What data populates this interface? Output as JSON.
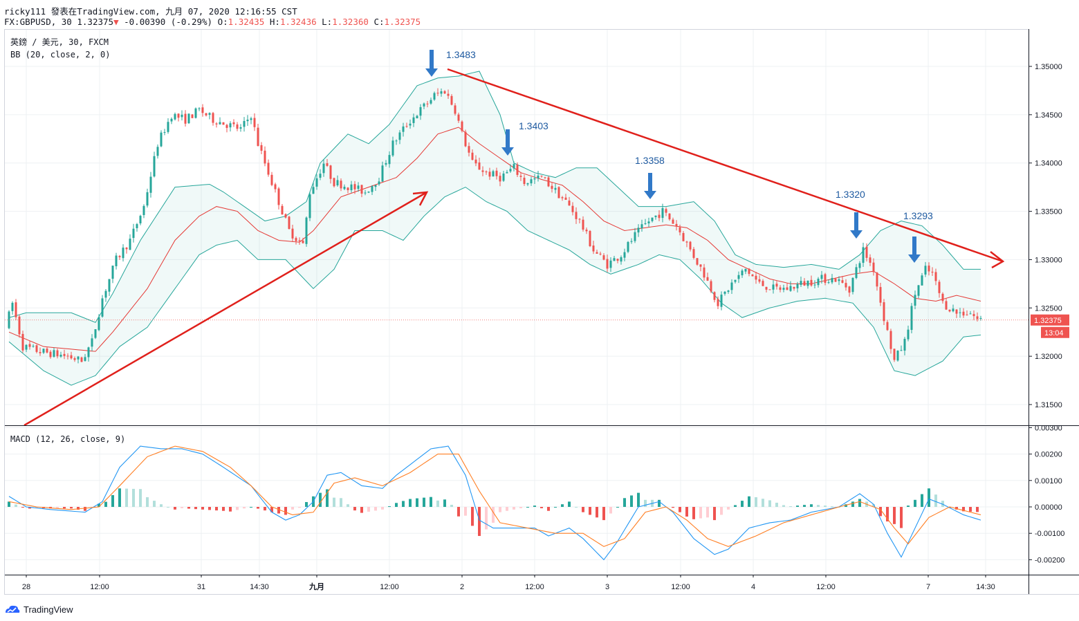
{
  "header": {
    "publisher_line": "ricky111 發表在TradingView.com, 九月 07, 2020 12:16:55 CST",
    "symbol_prefix": "FX:GBPUSD, 30",
    "last_price": "1.32375",
    "change_arrow": "▼",
    "change": "-0.00390 (-0.29%)",
    "o_label": "O:",
    "o_value": "1.32435",
    "h_label": "H:",
    "h_value": "1.32436",
    "l_label": "L:",
    "l_value": "1.32360",
    "c_label": "C:",
    "c_value": "1.32375"
  },
  "legend": {
    "symbol_title": "英鎊 / 美元, 30, FXCM",
    "bb_label": "BB (20, close, 2, 0)",
    "macd_label": "MACD (12, 26, close, 9)"
  },
  "price_axis": {
    "ticks": [
      "1.35000",
      "1.34500",
      "1.34000",
      "1.33500",
      "1.33000",
      "1.32500",
      "1.32000",
      "1.31500"
    ],
    "current_price": "1.32375",
    "countdown": "13:04"
  },
  "macd_axis": {
    "ticks": [
      "0.00300",
      "0.00200",
      "0.00100",
      "0.00000",
      "-0.00100",
      "-0.00200"
    ]
  },
  "time_axis": {
    "labels": [
      "28",
      "12:00",
      "31",
      "14:30",
      "九月",
      "12:00",
      "2",
      "12:00",
      "3",
      "12:00",
      "4",
      "12:00",
      "7",
      "14:30"
    ]
  },
  "annotations": [
    "1.3483",
    "1.3403",
    "1.3358",
    "1.3320",
    "1.3293"
  ],
  "footer": {
    "brand": "TradingView"
  },
  "colors": {
    "bull": "#26a69a",
    "bear": "#ef5350",
    "basis": "#e53935",
    "band": "#26a69a",
    "trendline": "#e0201b",
    "arrow": "#3179c8",
    "macd": "#2196f3",
    "signal": "#ff7f24",
    "hist_up": "#26a69a",
    "hist_up_fade": "#b2dfdb",
    "hist_down": "#ef5350",
    "hist_down_fade": "#ffcdd2"
  },
  "chart_data": {
    "type": "candlestick",
    "symbol": "GBPUSD",
    "interval": "30",
    "price_range": [
      1.3125,
      1.3525
    ],
    "macd_range": [
      -0.0025,
      0.003
    ],
    "anchors": [
      [
        0,
        1.323
      ],
      [
        2,
        1.3255
      ],
      [
        5,
        1.321
      ],
      [
        10,
        1.3205
      ],
      [
        18,
        1.32
      ],
      [
        22,
        1.3195
      ],
      [
        25,
        1.3215
      ],
      [
        28,
        1.326
      ],
      [
        32,
        1.33
      ],
      [
        36,
        1.332
      ],
      [
        40,
        1.3355
      ],
      [
        44,
        1.342
      ],
      [
        48,
        1.345
      ],
      [
        52,
        1.3445
      ],
      [
        56,
        1.3455
      ],
      [
        60,
        1.3445
      ],
      [
        64,
        1.344
      ],
      [
        68,
        1.3435
      ],
      [
        71,
        1.345
      ],
      [
        73,
        1.342
      ],
      [
        76,
        1.339
      ],
      [
        79,
        1.336
      ],
      [
        82,
        1.333
      ],
      [
        86,
        1.3315
      ],
      [
        88,
        1.337
      ],
      [
        92,
        1.34
      ],
      [
        95,
        1.338
      ],
      [
        100,
        1.3375
      ],
      [
        104,
        1.337
      ],
      [
        108,
        1.3385
      ],
      [
        112,
        1.342
      ],
      [
        116,
        1.344
      ],
      [
        120,
        1.3455
      ],
      [
        124,
        1.347
      ],
      [
        127,
        1.3475
      ],
      [
        130,
        1.3455
      ],
      [
        132,
        1.343
      ],
      [
        135,
        1.34
      ],
      [
        139,
        1.339
      ],
      [
        143,
        1.3385
      ],
      [
        147,
        1.3395
      ],
      [
        150,
        1.338
      ],
      [
        155,
        1.3385
      ],
      [
        158,
        1.3375
      ],
      [
        162,
        1.336
      ],
      [
        166,
        1.334
      ],
      [
        170,
        1.331
      ],
      [
        174,
        1.3295
      ],
      [
        178,
        1.3305
      ],
      [
        182,
        1.3325
      ],
      [
        186,
        1.334
      ],
      [
        190,
        1.335
      ],
      [
        194,
        1.3335
      ],
      [
        198,
        1.331
      ],
      [
        202,
        1.3285
      ],
      [
        206,
        1.3255
      ],
      [
        210,
        1.3275
      ],
      [
        214,
        1.329
      ],
      [
        218,
        1.3275
      ],
      [
        222,
        1.327
      ],
      [
        226,
        1.327
      ],
      [
        230,
        1.3275
      ],
      [
        236,
        1.328
      ],
      [
        240,
        1.328
      ],
      [
        244,
        1.327
      ],
      [
        248,
        1.331
      ],
      [
        251,
        1.329
      ],
      [
        254,
        1.324
      ],
      [
        257,
        1.3195
      ],
      [
        260,
        1.3215
      ],
      [
        263,
        1.3265
      ],
      [
        266,
        1.329
      ],
      [
        268,
        1.3285
      ],
      [
        271,
        1.3255
      ],
      [
        275,
        1.3245
      ],
      [
        279,
        1.3245
      ],
      [
        281,
        1.3238
      ]
    ],
    "basis_line": [
      [
        0,
        1.3225
      ],
      [
        10,
        1.321
      ],
      [
        25,
        1.3205
      ],
      [
        30,
        1.3225
      ],
      [
        40,
        1.327
      ],
      [
        48,
        1.332
      ],
      [
        55,
        1.3345
      ],
      [
        60,
        1.3355
      ],
      [
        66,
        1.335
      ],
      [
        72,
        1.333
      ],
      [
        78,
        1.332
      ],
      [
        84,
        1.3318
      ],
      [
        88,
        1.333
      ],
      [
        96,
        1.3365
      ],
      [
        104,
        1.3375
      ],
      [
        112,
        1.3385
      ],
      [
        118,
        1.3405
      ],
      [
        124,
        1.343
      ],
      [
        130,
        1.3437
      ],
      [
        136,
        1.342
      ],
      [
        142,
        1.3405
      ],
      [
        148,
        1.339
      ],
      [
        154,
        1.3383
      ],
      [
        160,
        1.3377
      ],
      [
        166,
        1.336
      ],
      [
        172,
        1.334
      ],
      [
        178,
        1.333
      ],
      [
        184,
        1.3333
      ],
      [
        190,
        1.3336
      ],
      [
        196,
        1.3333
      ],
      [
        202,
        1.332
      ],
      [
        208,
        1.33
      ],
      [
        214,
        1.329
      ],
      [
        220,
        1.328
      ],
      [
        226,
        1.3275
      ],
      [
        232,
        1.3275
      ],
      [
        238,
        1.328
      ],
      [
        244,
        1.3285
      ],
      [
        250,
        1.3288
      ],
      [
        256,
        1.3275
      ],
      [
        262,
        1.326
      ],
      [
        268,
        1.3257
      ],
      [
        274,
        1.3263
      ],
      [
        281,
        1.3257
      ]
    ],
    "upper_band": [
      [
        0,
        1.324
      ],
      [
        5,
        1.3245
      ],
      [
        18,
        1.3245
      ],
      [
        25,
        1.3235
      ],
      [
        30,
        1.3265
      ],
      [
        38,
        1.332
      ],
      [
        48,
        1.3375
      ],
      [
        58,
        1.3378
      ],
      [
        62,
        1.337
      ],
      [
        68,
        1.3355
      ],
      [
        74,
        1.334
      ],
      [
        80,
        1.3345
      ],
      [
        86,
        1.336
      ],
      [
        90,
        1.34
      ],
      [
        98,
        1.343
      ],
      [
        104,
        1.342
      ],
      [
        110,
        1.344
      ],
      [
        118,
        1.348
      ],
      [
        124,
        1.3488
      ],
      [
        130,
        1.349
      ],
      [
        136,
        1.3495
      ],
      [
        142,
        1.345
      ],
      [
        146,
        1.34
      ],
      [
        152,
        1.339
      ],
      [
        158,
        1.3385
      ],
      [
        164,
        1.3395
      ],
      [
        170,
        1.3395
      ],
      [
        176,
        1.3375
      ],
      [
        182,
        1.3355
      ],
      [
        190,
        1.3355
      ],
      [
        198,
        1.336
      ],
      [
        204,
        1.334
      ],
      [
        210,
        1.3305
      ],
      [
        216,
        1.3295
      ],
      [
        224,
        1.3292
      ],
      [
        232,
        1.3295
      ],
      [
        240,
        1.329
      ],
      [
        246,
        1.3305
      ],
      [
        252,
        1.333
      ],
      [
        258,
        1.334
      ],
      [
        264,
        1.3335
      ],
      [
        270,
        1.3315
      ],
      [
        276,
        1.329
      ],
      [
        281,
        1.329
      ]
    ],
    "lower_band": [
      [
        0,
        1.3215
      ],
      [
        10,
        1.3185
      ],
      [
        18,
        1.317
      ],
      [
        25,
        1.318
      ],
      [
        32,
        1.321
      ],
      [
        40,
        1.323
      ],
      [
        48,
        1.327
      ],
      [
        55,
        1.3305
      ],
      [
        60,
        1.3315
      ],
      [
        66,
        1.332
      ],
      [
        72,
        1.33
      ],
      [
        80,
        1.33
      ],
      [
        88,
        1.327
      ],
      [
        94,
        1.329
      ],
      [
        100,
        1.333
      ],
      [
        108,
        1.333
      ],
      [
        114,
        1.332
      ],
      [
        120,
        1.3345
      ],
      [
        126,
        1.3365
      ],
      [
        132,
        1.3375
      ],
      [
        138,
        1.336
      ],
      [
        144,
        1.335
      ],
      [
        150,
        1.333
      ],
      [
        156,
        1.332
      ],
      [
        162,
        1.331
      ],
      [
        168,
        1.3295
      ],
      [
        174,
        1.3285
      ],
      [
        182,
        1.3295
      ],
      [
        188,
        1.3305
      ],
      [
        194,
        1.33
      ],
      [
        200,
        1.328
      ],
      [
        206,
        1.3255
      ],
      [
        212,
        1.324
      ],
      [
        220,
        1.325
      ],
      [
        228,
        1.3257
      ],
      [
        236,
        1.326
      ],
      [
        244,
        1.3255
      ],
      [
        250,
        1.323
      ],
      [
        256,
        1.3185
      ],
      [
        262,
        1.318
      ],
      [
        270,
        1.3195
      ],
      [
        276,
        1.322
      ],
      [
        281,
        1.3222
      ]
    ],
    "macd_line": [
      [
        0,
        0.0004
      ],
      [
        5,
        0.0
      ],
      [
        12,
        -0.0001
      ],
      [
        22,
        -0.0002
      ],
      [
        27,
        0.0002
      ],
      [
        32,
        0.0015
      ],
      [
        38,
        0.0023
      ],
      [
        44,
        0.0022
      ],
      [
        50,
        0.0022
      ],
      [
        56,
        0.002
      ],
      [
        62,
        0.0015
      ],
      [
        70,
        0.0008
      ],
      [
        76,
        -0.0002
      ],
      [
        80,
        -0.0005
      ],
      [
        84,
        -0.0003
      ],
      [
        88,
        0.0002
      ],
      [
        92,
        0.0012
      ],
      [
        96,
        0.0013
      ],
      [
        102,
        0.0008
      ],
      [
        108,
        0.0007
      ],
      [
        112,
        0.0012
      ],
      [
        116,
        0.0016
      ],
      [
        122,
        0.0022
      ],
      [
        127,
        0.0023
      ],
      [
        132,
        0.0012
      ],
      [
        136,
        -0.0005
      ],
      [
        140,
        -0.0008
      ],
      [
        146,
        -0.0008
      ],
      [
        152,
        -0.0008
      ],
      [
        156,
        -0.0011
      ],
      [
        162,
        -0.0008
      ],
      [
        166,
        -0.0012
      ],
      [
        172,
        -0.002
      ],
      [
        176,
        -0.0013
      ],
      [
        182,
        0.0
      ],
      [
        188,
        0.0002
      ],
      [
        192,
        -0.0002
      ],
      [
        198,
        -0.0012
      ],
      [
        204,
        -0.0018
      ],
      [
        208,
        -0.0016
      ],
      [
        214,
        -0.0008
      ],
      [
        220,
        -0.0006
      ],
      [
        226,
        -0.0005
      ],
      [
        232,
        -0.0002
      ],
      [
        240,
        0.0
      ],
      [
        246,
        0.0005
      ],
      [
        250,
        0.0001
      ],
      [
        254,
        -0.001
      ],
      [
        258,
        -0.0019
      ],
      [
        262,
        -0.0008
      ],
      [
        266,
        0.0003
      ],
      [
        270,
        0.0001
      ],
      [
        276,
        -0.0003
      ],
      [
        281,
        -0.0005
      ]
    ],
    "signal_line": [
      [
        0,
        0.0002
      ],
      [
        8,
        0.0
      ],
      [
        18,
        -0.0001
      ],
      [
        26,
        0.0
      ],
      [
        32,
        0.0008
      ],
      [
        40,
        0.0019
      ],
      [
        48,
        0.0023
      ],
      [
        56,
        0.0021
      ],
      [
        64,
        0.0015
      ],
      [
        70,
        0.0008
      ],
      [
        76,
        0.0
      ],
      [
        82,
        -0.0003
      ],
      [
        88,
        -0.0002
      ],
      [
        94,
        0.0009
      ],
      [
        100,
        0.0011
      ],
      [
        108,
        0.0008
      ],
      [
        116,
        0.0013
      ],
      [
        124,
        0.002
      ],
      [
        130,
        0.002
      ],
      [
        136,
        0.0006
      ],
      [
        142,
        -0.0006
      ],
      [
        150,
        -0.0008
      ],
      [
        158,
        -0.001
      ],
      [
        166,
        -0.001
      ],
      [
        172,
        -0.0015
      ],
      [
        178,
        -0.0012
      ],
      [
        184,
        -0.0002
      ],
      [
        190,
        0.0
      ],
      [
        196,
        -0.0005
      ],
      [
        202,
        -0.0012
      ],
      [
        208,
        -0.0015
      ],
      [
        216,
        -0.0011
      ],
      [
        224,
        -0.0006
      ],
      [
        232,
        -0.0003
      ],
      [
        240,
        0.0
      ],
      [
        246,
        0.0002
      ],
      [
        252,
        -0.0001
      ],
      [
        256,
        -0.0008
      ],
      [
        260,
        -0.0014
      ],
      [
        266,
        -0.0004
      ],
      [
        272,
        0.0
      ],
      [
        281,
        -0.0003
      ]
    ]
  }
}
